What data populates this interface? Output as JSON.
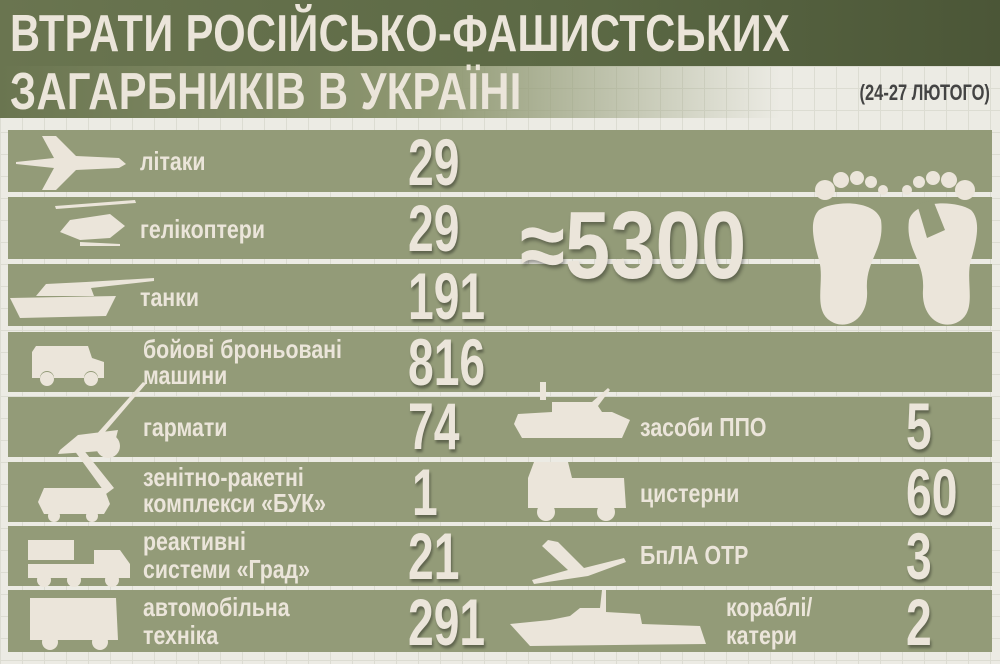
{
  "header": {
    "title_line1": "ВТРАТИ РОСІЙСЬКО-ФАШИСТСЬКИХ",
    "title_line2": "ЗАГАРБНИКІВ В УКРАЇНІ",
    "dates": "(24-27 ЛЮТОГО)"
  },
  "personnel": {
    "value": "≈5300",
    "icon": "footprints-with-toe-tag-icon"
  },
  "left": [
    {
      "label": "літаки",
      "value": "29",
      "icon": "fighter-jet-icon"
    },
    {
      "label": "гелікоптери",
      "value": "29",
      "icon": "helicopter-icon"
    },
    {
      "label": "танки",
      "value": "191",
      "icon": "tank-icon"
    },
    {
      "label": "бойові броньовані",
      "label2": "машини",
      "value": "816",
      "icon": "armored-vehicle-icon"
    },
    {
      "label": "гармати",
      "value": "74",
      "icon": "artillery-gun-icon"
    },
    {
      "label": "зенітно-ракетні",
      "label2": "комплекси «БУК»",
      "value": "1",
      "icon": "missile-launcher-icon"
    },
    {
      "label": "реактивні",
      "label2": "системи «Град»",
      "value": "21",
      "icon": "rocket-launcher-truck-icon"
    },
    {
      "label": "автомобільна",
      "label2": "техніка",
      "value": "291",
      "icon": "truck-icon"
    }
  ],
  "right": [
    {
      "label": "засоби ППО",
      "value": "5",
      "icon": "anti-aircraft-vehicle-icon"
    },
    {
      "label": "цистерни",
      "value": "60",
      "icon": "tanker-truck-icon"
    },
    {
      "label": "БпЛА ОТР",
      "value": "3",
      "icon": "drone-icon"
    },
    {
      "label": "кораблі/",
      "label2": "катери",
      "value": "2",
      "icon": "ship-icon"
    }
  ],
  "colors": {
    "header": "#5b6844",
    "band": "#939b78",
    "text": "#ebe5da",
    "background": "#ecebe4"
  }
}
